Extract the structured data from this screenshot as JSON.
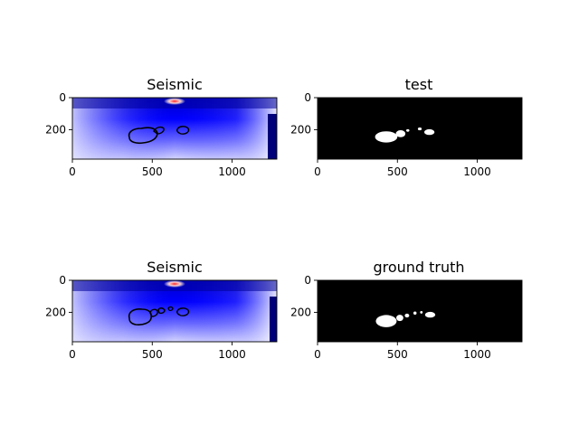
{
  "chart_data": [
    {
      "type": "heatmap",
      "title": "Seismic",
      "colormap": "seismic",
      "xlim": [
        0,
        1280
      ],
      "ylim": [
        384,
        0
      ],
      "xticks": [
        0,
        500,
        1000
      ],
      "yticks": [
        0,
        200
      ],
      "overlay": "ground truth contours (black)"
    },
    {
      "type": "heatmap",
      "title": "test",
      "colormap": "gray",
      "xlim": [
        0,
        1280
      ],
      "ylim": [
        384,
        0
      ],
      "xticks": [
        0,
        500,
        1000
      ],
      "yticks": [
        0,
        200
      ]
    },
    {
      "type": "heatmap",
      "title": "Seismic",
      "colormap": "seismic",
      "xlim": [
        0,
        1280
      ],
      "ylim": [
        384,
        0
      ],
      "xticks": [
        0,
        500,
        1000
      ],
      "yticks": [
        0,
        200
      ],
      "overlay": "predicted contours (black)"
    },
    {
      "type": "heatmap",
      "title": "ground truth",
      "colormap": "gray",
      "xlim": [
        0,
        1280
      ],
      "ylim": [
        384,
        0
      ],
      "xticks": [
        0,
        500,
        1000
      ],
      "yticks": [
        0,
        200
      ]
    }
  ],
  "mask_blobs_test": [
    {
      "cx": 430,
      "cy": 245,
      "rx": 70,
      "ry": 35
    },
    {
      "cx": 520,
      "cy": 225,
      "rx": 30,
      "ry": 22
    },
    {
      "cx": 565,
      "cy": 205,
      "rx": 10,
      "ry": 8
    },
    {
      "cx": 640,
      "cy": 195,
      "rx": 12,
      "ry": 9
    },
    {
      "cx": 700,
      "cy": 215,
      "rx": 32,
      "ry": 18
    }
  ],
  "mask_blobs_gt": [
    {
      "cx": 430,
      "cy": 255,
      "rx": 65,
      "ry": 38
    },
    {
      "cx": 515,
      "cy": 235,
      "rx": 22,
      "ry": 20
    },
    {
      "cx": 560,
      "cy": 220,
      "rx": 14,
      "ry": 12
    },
    {
      "cx": 610,
      "cy": 205,
      "rx": 10,
      "ry": 10
    },
    {
      "cx": 650,
      "cy": 200,
      "rx": 8,
      "ry": 8
    },
    {
      "cx": 705,
      "cy": 215,
      "rx": 32,
      "ry": 18
    }
  ]
}
